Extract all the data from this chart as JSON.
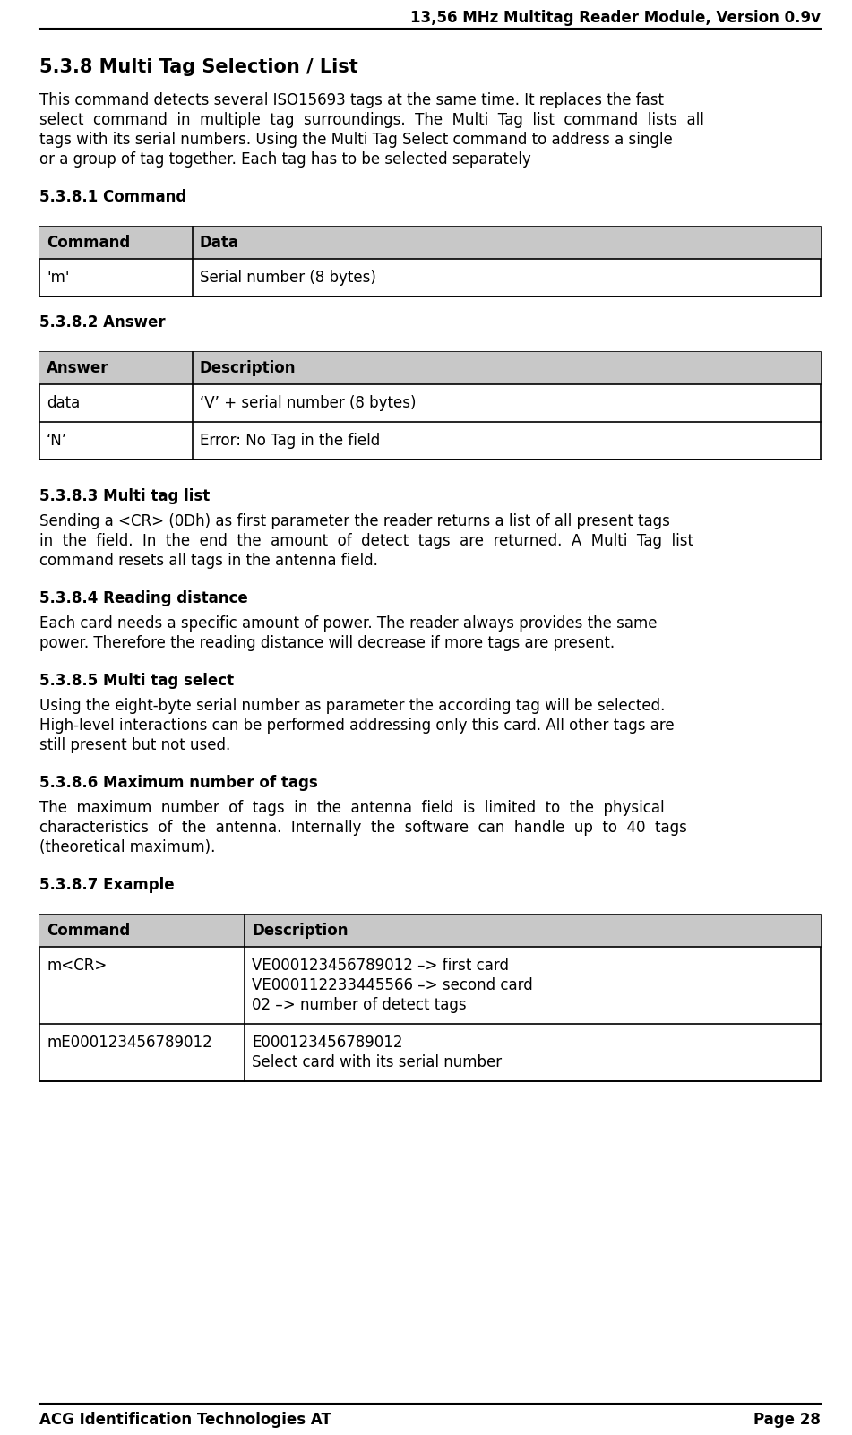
{
  "header_text": "13,56 MHz Multitag Reader Module, Version 0.9v",
  "footer_left": "ACG Identification Technologies AT",
  "footer_right": "Page 28",
  "title": "5.3.8 Multi Tag Selection / List",
  "section_531": "5.3.8.1 Command",
  "table1_headers": [
    "Command",
    "Data"
  ],
  "table1_rows": [
    [
      "'m'",
      "Serial number (8 bytes)"
    ]
  ],
  "section_532": "5.3.8.2 Answer",
  "table2_headers": [
    "Answer",
    "Description"
  ],
  "table2_rows": [
    [
      "data",
      "‘V’ + serial number (8 bytes)"
    ],
    [
      "‘N’",
      "Error: No Tag in the field"
    ]
  ],
  "section_533": "5.3.8.3 Multi tag list",
  "section_534": "5.3.8.4 Reading distance",
  "section_535": "5.3.8.5 Multi tag select",
  "section_536": "5.3.8.6 Maximum number of tags",
  "section_537": "5.3.8.7 Example",
  "table3_headers": [
    "Command",
    "Description"
  ],
  "table3_rows": [
    [
      "m<CR>",
      "VE000123456789012 –> first card\nVE000112233445566 –> second card\n02 –> number of detect tags"
    ],
    [
      "mE000123456789012",
      "E000123456789012\nSelect card with its serial number"
    ]
  ],
  "bg_color": "#ffffff",
  "intro_lines": [
    "This command detects several ISO15693 tags at the same time. It replaces the fast",
    "select  command  in  multiple  tag  surroundings.  The  Multi  Tag  list  command  lists  all",
    "tags with its serial numbers. Using the Multi Tag Select command to address a single",
    "or a group of tag together. Each tag has to be selected separately"
  ],
  "text_533_lines": [
    "Sending a <CR> (0Dh) as first parameter the reader returns a list of all present tags",
    "in  the  field.  In  the  end  the  amount  of  detect  tags  are  returned.  A  Multi  Tag  list",
    "command resets all tags in the antenna field."
  ],
  "text_534_lines": [
    "Each card needs a specific amount of power. The reader always provides the same",
    "power. Therefore the reading distance will decrease if more tags are present."
  ],
  "text_535_lines": [
    "Using the eight-byte serial number as parameter the according tag will be selected.",
    "High-level interactions can be performed addressing only this card. All other tags are",
    "still present but not used."
  ],
  "text_536_lines": [
    "The  maximum  number  of  tags  in  the  antenna  field  is  limited  to  the  physical",
    "characteristics  of  the  antenna.  Internally  the  software  can  handle  up  to  40  tags",
    "(theoretical maximum)."
  ]
}
